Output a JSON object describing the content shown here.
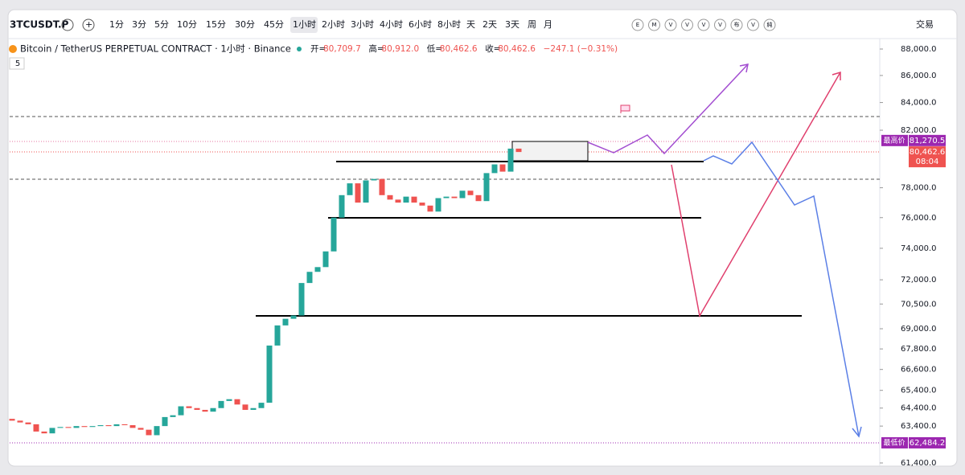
{
  "toolbar": {
    "symbol": "3TCUSDT.P",
    "intervals": [
      "1分",
      "3分",
      "5分",
      "10分",
      "15分",
      "30分",
      "45分",
      "1小时",
      "2小时",
      "3小时",
      "4小时",
      "6小时",
      "8小时",
      "天",
      "2天",
      "3天",
      "周",
      "月"
    ],
    "active_interval": "1小时",
    "indicators": [
      "E",
      "M",
      "V",
      "V",
      "V",
      "V",
      "布",
      "V",
      "純"
    ],
    "trade": "交易"
  },
  "legend": {
    "title": "Bitcoin / TetherUS PERPETUAL CONTRACT · 1小时 · Binance",
    "fields": [
      {
        "label": "开=",
        "value": "80,709.7"
      },
      {
        "label": "高=",
        "value": "80,912.0"
      },
      {
        "label": "低=",
        "value": "80,462.6"
      },
      {
        "label": "收=",
        "value": "80,462.6"
      }
    ],
    "change": "−247.1 (−0.31%)",
    "study_count": "5"
  },
  "chart_data": {
    "type": "candlestick",
    "log_scale": true,
    "ylim": [
      61400,
      88000
    ],
    "yticks": [
      {
        "value": 88000,
        "label": "88,000.0"
      },
      {
        "value": 86000,
        "label": "86,000.0"
      },
      {
        "value": 84000,
        "label": "84,000.0"
      },
      {
        "value": 82000,
        "label": "82,000.0"
      },
      {
        "value": 78000,
        "label": "78,000.0"
      },
      {
        "value": 76000,
        "label": "76,000.0"
      },
      {
        "value": 74000,
        "label": "74,000.0"
      },
      {
        "value": 72000,
        "label": "72,000.0"
      },
      {
        "value": 70500,
        "label": "70,500.0"
      },
      {
        "value": 69000,
        "label": "69,000.0"
      },
      {
        "value": 67800,
        "label": "67,800.0"
      },
      {
        "value": 66600,
        "label": "66,600.0"
      },
      {
        "value": 65400,
        "label": "65,400.0"
      },
      {
        "value": 64400,
        "label": "64,400.0"
      },
      {
        "value": 63400,
        "label": "63,400.0"
      },
      {
        "value": 61400,
        "label": "61,400.0"
      }
    ],
    "first_open": 63800,
    "closes": [
      63700,
      63600,
      63500,
      63100,
      63000,
      63300,
      63350,
      63300,
      63400,
      63350,
      63400,
      63450,
      63400,
      63500,
      63450,
      63300,
      63200,
      62900,
      63400,
      63900,
      64000,
      64500,
      64400,
      64300,
      64200,
      64400,
      64800,
      64900,
      64600,
      64300,
      64400,
      64700,
      68000,
      69200,
      69600,
      69800,
      71800,
      72500,
      72800,
      73800,
      76000,
      77500,
      78300,
      77000,
      78500,
      78600,
      77500,
      77200,
      77000,
      77400,
      77000,
      76800,
      76400,
      77300,
      77400,
      77300,
      77800,
      77500,
      77100,
      79000,
      79600,
      79100,
      80700,
      80462.6
    ],
    "up_color": "#26a69a",
    "down_color": "#ef5350",
    "price_labels": {
      "high": {
        "name": "最高价",
        "value": 81270.5,
        "label": "81,270.5"
      },
      "last": {
        "value": 80462.6,
        "label": "80,462.6",
        "countdown": "08:04"
      },
      "low": {
        "name": "最低价",
        "value": 62484.2,
        "label": "62,484.2"
      }
    }
  }
}
